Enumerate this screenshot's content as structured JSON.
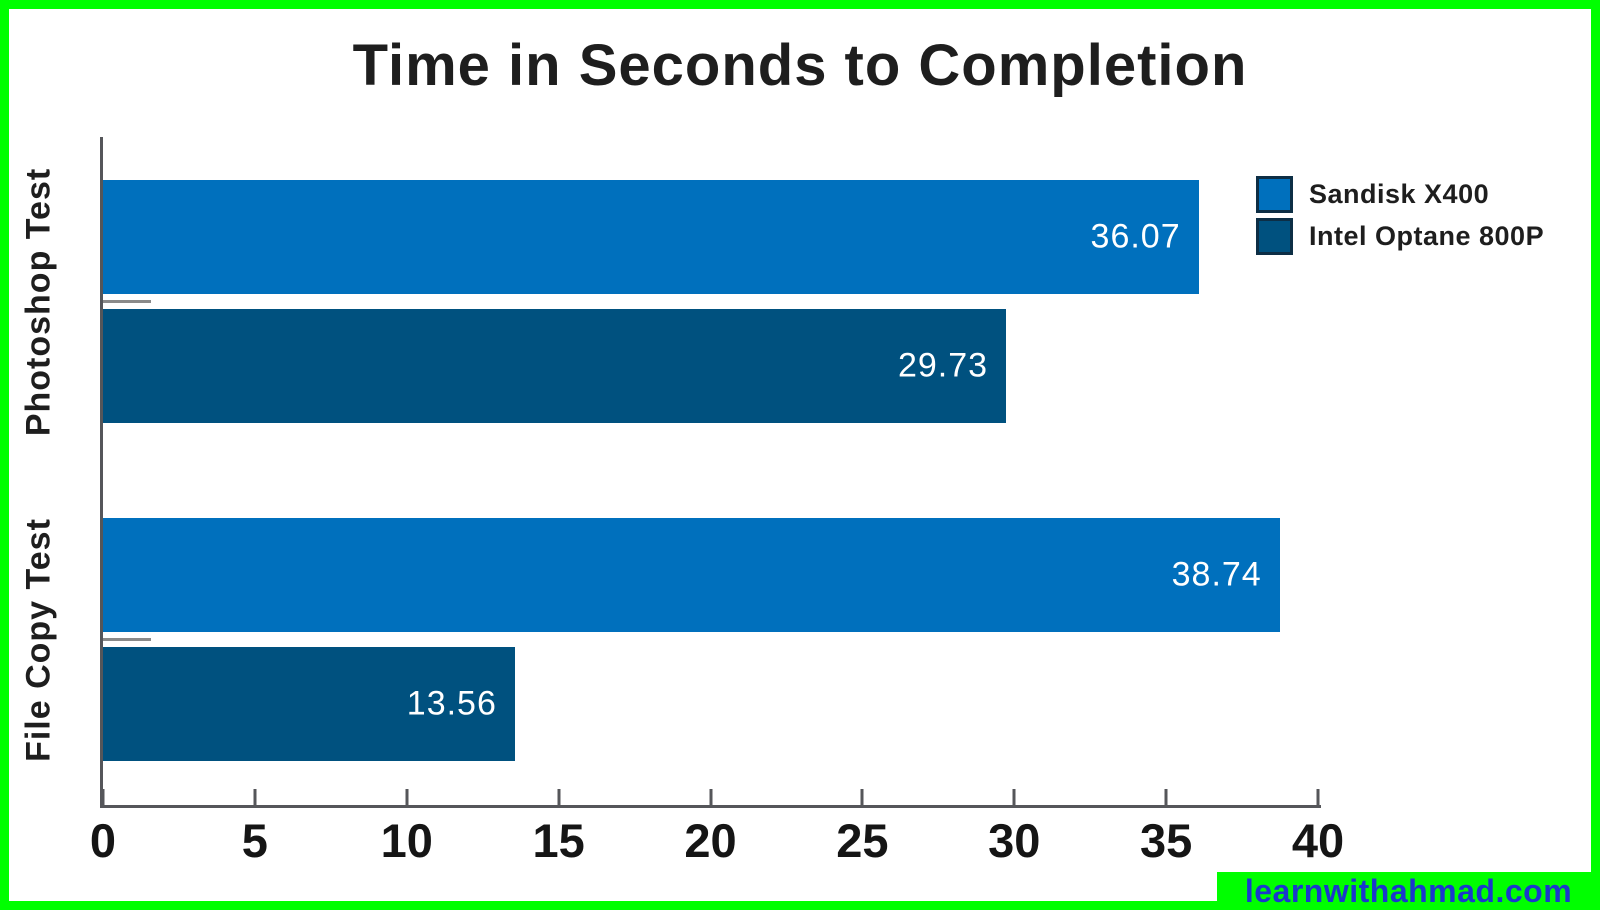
{
  "frame": {
    "border_color": "#00ff00",
    "background": "#ffffff"
  },
  "chart_data": {
    "type": "bar",
    "orientation": "horizontal",
    "title": "Time in Seconds to Completion",
    "categories": [
      "Photoshop Test",
      "File Copy Test"
    ],
    "series": [
      {
        "name": "Sandisk X400",
        "color": "#0070bd",
        "values": [
          36.07,
          38.74
        ]
      },
      {
        "name": "Intel Optane 800P",
        "color": "#00517f",
        "values": [
          29.73,
          13.56
        ]
      }
    ],
    "x_ticks": [
      0,
      5,
      10,
      15,
      20,
      25,
      30,
      35,
      40
    ],
    "xlim": [
      0,
      40
    ],
    "xlabel": "",
    "ylabel": "",
    "grid": false,
    "legend_position": "upper right",
    "value_labels": "inside-end",
    "value_label_color": "#ffffff",
    "axis_color": "#55565a",
    "text_color": "#1e1e1e"
  },
  "watermark": {
    "text": "learnwithahmad.com",
    "text_color": "#1b38cc",
    "background": "#00ff00"
  }
}
